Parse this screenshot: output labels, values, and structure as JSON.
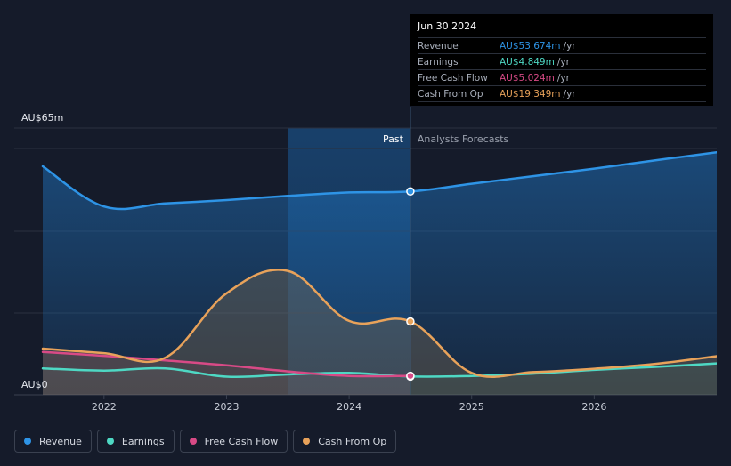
{
  "chart_data": {
    "type": "area",
    "y_top_label": "AU$65m",
    "y_bottom_label": "AU$0",
    "ylim": [
      0,
      65
    ],
    "xlim": [
      2021.5,
      2027.0
    ],
    "x_ticks": [
      {
        "value": 2022,
        "label": "2022"
      },
      {
        "value": 2023,
        "label": "2023"
      },
      {
        "value": 2024,
        "label": "2024"
      },
      {
        "value": 2025,
        "label": "2025"
      },
      {
        "value": 2026,
        "label": "2026"
      }
    ],
    "past_label": "Past",
    "forecast_label": "Analysts Forecasts",
    "highlight_start": 2023.5,
    "divider_x": 2024.5,
    "series": [
      {
        "name": "Revenue",
        "color": "#2e94e6",
        "points": [
          [
            2021.5,
            60.3
          ],
          [
            2022.0,
            49.7
          ],
          [
            2022.5,
            50.5
          ],
          [
            2023.0,
            51.4
          ],
          [
            2023.5,
            52.5
          ],
          [
            2024.0,
            53.4
          ],
          [
            2024.5,
            53.674
          ],
          [
            2025.0,
            55.7
          ],
          [
            2025.5,
            57.7
          ],
          [
            2026.0,
            59.7
          ],
          [
            2026.5,
            61.9
          ],
          [
            2027.0,
            64.0
          ]
        ]
      },
      {
        "name": "Earnings",
        "color": "#4ed8c4",
        "points": [
          [
            2021.5,
            7.0
          ],
          [
            2022.0,
            6.4
          ],
          [
            2022.5,
            7.0
          ],
          [
            2023.0,
            4.8
          ],
          [
            2023.5,
            5.4
          ],
          [
            2024.0,
            5.8
          ],
          [
            2024.5,
            4.849
          ],
          [
            2025.0,
            5.0
          ],
          [
            2025.5,
            5.6
          ],
          [
            2026.0,
            6.6
          ],
          [
            2026.5,
            7.4
          ],
          [
            2027.0,
            8.3
          ]
        ]
      },
      {
        "name": "Free Cash Flow",
        "color": "#d84a86",
        "points": [
          [
            2021.5,
            11.3
          ],
          [
            2022.0,
            10.3
          ],
          [
            2022.5,
            9.1
          ],
          [
            2023.0,
            7.8
          ],
          [
            2023.5,
            6.2
          ],
          [
            2024.0,
            5.0
          ],
          [
            2024.5,
            5.024
          ]
        ]
      },
      {
        "name": "Cash From Op",
        "color": "#e8a25a",
        "points": [
          [
            2021.5,
            12.2
          ],
          [
            2022.0,
            11.0
          ],
          [
            2022.5,
            9.8
          ],
          [
            2023.0,
            26.8
          ],
          [
            2023.5,
            32.7
          ],
          [
            2024.0,
            19.5
          ],
          [
            2024.5,
            19.349
          ],
          [
            2025.0,
            5.8
          ],
          [
            2025.5,
            6.0
          ],
          [
            2026.0,
            6.9
          ],
          [
            2026.5,
            8.2
          ],
          [
            2027.0,
            10.2
          ]
        ]
      }
    ]
  },
  "tooltip": {
    "date": "Jun 30 2024",
    "rows": [
      {
        "name": "Revenue",
        "value": "AU$53.674m",
        "unit": "/yr",
        "color": "#2e94e6"
      },
      {
        "name": "Earnings",
        "value": "AU$4.849m",
        "unit": "/yr",
        "color": "#4ed8c4"
      },
      {
        "name": "Free Cash Flow",
        "value": "AU$5.024m",
        "unit": "/yr",
        "color": "#d84a86"
      },
      {
        "name": "Cash From Op",
        "value": "AU$19.349m",
        "unit": "/yr",
        "color": "#e8a25a"
      }
    ]
  },
  "legend": [
    {
      "label": "Revenue",
      "color": "#2e94e6"
    },
    {
      "label": "Earnings",
      "color": "#4ed8c4"
    },
    {
      "label": "Free Cash Flow",
      "color": "#d84a86"
    },
    {
      "label": "Cash From Op",
      "color": "#e8a25a"
    }
  ]
}
